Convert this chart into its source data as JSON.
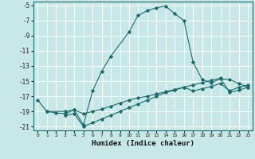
{
  "xlabel": "Humidex (Indice chaleur)",
  "bg_color": "#c8e8e8",
  "grid_color": "#ffffff",
  "line_color": "#1a6b6b",
  "xlim": [
    -0.5,
    23.5
  ],
  "ylim": [
    -21.5,
    -4.5
  ],
  "yticks": [
    -5,
    -7,
    -9,
    -11,
    -13,
    -15,
    -17,
    -19,
    -21
  ],
  "xticks": [
    0,
    1,
    2,
    3,
    4,
    5,
    6,
    7,
    8,
    9,
    10,
    11,
    12,
    13,
    14,
    15,
    16,
    17,
    18,
    19,
    20,
    21,
    22,
    23
  ],
  "curve1_x": [
    0,
    1,
    3,
    4,
    5,
    6,
    7,
    8,
    10,
    11,
    12,
    13,
    14,
    15,
    16,
    17,
    18,
    19,
    20,
    21,
    22,
    23
  ],
  "curve1_y": [
    -17.5,
    -19.0,
    -19.0,
    -18.8,
    -20.8,
    -16.3,
    -13.7,
    -11.7,
    -8.5,
    -6.3,
    -5.7,
    -5.3,
    -5.1,
    -6.1,
    -7.0,
    -12.5,
    -14.8,
    -15.2,
    -14.7,
    -14.8,
    -15.3,
    -15.8
  ],
  "curve2_x": [
    1,
    2,
    3,
    4,
    5,
    6,
    7,
    8,
    9,
    10,
    11,
    12,
    13,
    14,
    15,
    16,
    17,
    18,
    19,
    20,
    21,
    22,
    23
  ],
  "curve2_y": [
    -19.0,
    -19.2,
    -19.3,
    -18.8,
    -19.3,
    -19.0,
    -18.7,
    -18.3,
    -17.9,
    -17.5,
    -17.2,
    -17.0,
    -16.7,
    -16.4,
    -16.1,
    -15.8,
    -16.3,
    -16.0,
    -15.7,
    -15.3,
    -16.3,
    -15.8,
    -15.5
  ],
  "curve3_x": [
    3,
    4,
    5,
    6,
    7,
    8,
    9,
    10,
    11,
    12,
    13,
    14,
    15,
    16,
    17,
    18,
    19,
    20,
    21,
    22,
    23
  ],
  "curve3_y": [
    -19.5,
    -19.3,
    -21.0,
    -20.5,
    -20.0,
    -19.5,
    -19.0,
    -18.5,
    -18.0,
    -17.5,
    -17.0,
    -16.5,
    -16.2,
    -15.8,
    -15.5,
    -15.2,
    -14.9,
    -14.6,
    -16.5,
    -16.2,
    -15.8
  ]
}
